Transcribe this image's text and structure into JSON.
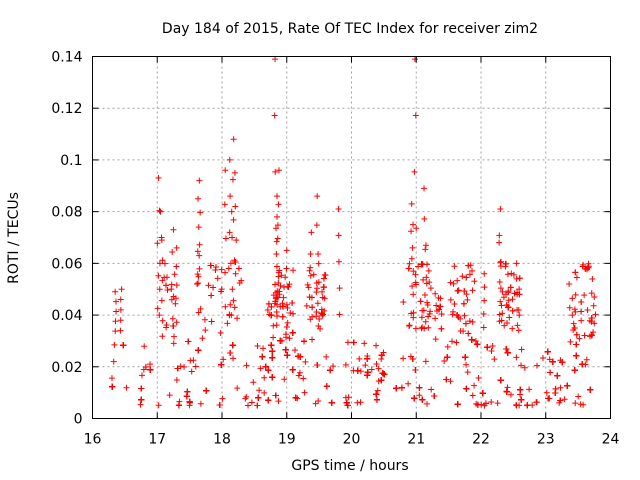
{
  "chart_data": {
    "type": "scatter",
    "title": "Day 184 of 2015, Rate Of TEC Index for receiver zim2",
    "xlabel": "GPS time / hours",
    "ylabel": "ROTI / TECUs",
    "xlim": [
      16,
      24
    ],
    "ylim": [
      0,
      0.14
    ],
    "xticks": [
      "16",
      "17",
      "18",
      "19",
      "20",
      "21",
      "22",
      "23",
      "24"
    ],
    "yticks": [
      "0",
      "0.02",
      "0.04",
      "0.06",
      "0.08",
      "0.1",
      "0.12",
      "0.14"
    ],
    "grid": true,
    "marker": "plus",
    "color": "#ff0000",
    "series": [
      {
        "name": "ROTI",
        "time_range": [
          16.3,
          23.75
        ],
        "baseline_band": [
          0.005,
          0.03
        ],
        "notable_points": [
          {
            "x": 16.35,
            "y": 0.049
          },
          {
            "x": 16.45,
            "y": 0.05
          },
          {
            "x": 17.02,
            "y": 0.093
          },
          {
            "x": 17.05,
            "y": 0.08
          },
          {
            "x": 17.07,
            "y": 0.069
          },
          {
            "x": 17.25,
            "y": 0.073
          },
          {
            "x": 17.3,
            "y": 0.066
          },
          {
            "x": 17.65,
            "y": 0.092
          },
          {
            "x": 17.63,
            "y": 0.085
          },
          {
            "x": 18.05,
            "y": 0.096
          },
          {
            "x": 18.12,
            "y": 0.1
          },
          {
            "x": 18.18,
            "y": 0.108
          },
          {
            "x": 18.2,
            "y": 0.095
          },
          {
            "x": 18.15,
            "y": 0.08
          },
          {
            "x": 18.82,
            "y": 0.139
          },
          {
            "x": 18.88,
            "y": 0.096
          },
          {
            "x": 18.85,
            "y": 0.086
          },
          {
            "x": 18.85,
            "y": 0.078
          },
          {
            "x": 19.0,
            "y": 0.065
          },
          {
            "x": 19.47,
            "y": 0.086
          },
          {
            "x": 19.38,
            "y": 0.072
          },
          {
            "x": 19.8,
            "y": 0.081
          },
          {
            "x": 20.93,
            "y": 0.083
          },
          {
            "x": 20.95,
            "y": 0.075
          },
          {
            "x": 20.98,
            "y": 0.139
          },
          {
            "x": 21.12,
            "y": 0.089
          },
          {
            "x": 21.15,
            "y": 0.067
          },
          {
            "x": 22.3,
            "y": 0.081
          },
          {
            "x": 22.28,
            "y": 0.068
          },
          {
            "x": 22.05,
            "y": 0.056
          },
          {
            "x": 22.55,
            "y": 0.06
          },
          {
            "x": 23.75,
            "y": 0.047
          }
        ]
      }
    ]
  }
}
